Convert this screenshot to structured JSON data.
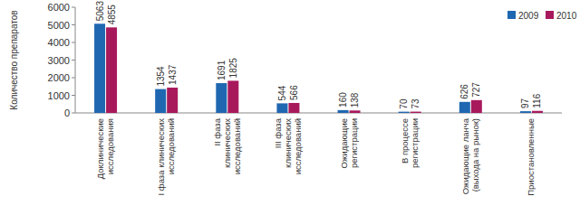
{
  "chart_data": {
    "type": "bar",
    "y_label": "Количество препаратов",
    "categories": [
      "Доклинические исследования",
      "I фаза клинических исследований",
      "II фаза клинических исследований",
      "III фаза клинических исследований",
      "Ожидающие регистрации",
      "В процессе регистрации",
      "Ожидающие ланча (выхода на рынок)",
      "Приостановленные"
    ],
    "series": [
      {
        "name": "2009",
        "color": "#1f67b1",
        "values": [
          5063,
          1354,
          1691,
          544,
          160,
          70,
          626,
          97
        ]
      },
      {
        "name": "2010",
        "color": "#a8195c",
        "values": [
          4855,
          1437,
          1825,
          566,
          138,
          73,
          727,
          116
        ]
      }
    ],
    "ylim": [
      0,
      6000
    ],
    "yticks": [
      0,
      1000,
      2000,
      3000,
      4000,
      5000,
      6000
    ],
    "grid": false,
    "legend": "upper right",
    "data_labels": true
  }
}
